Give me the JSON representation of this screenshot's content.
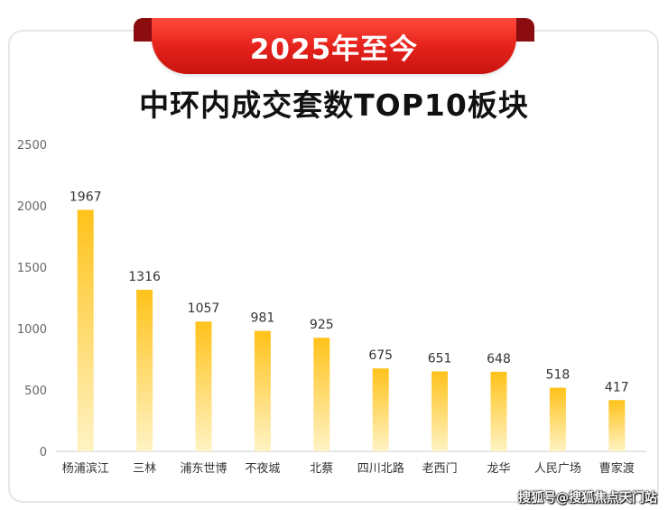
{
  "header": {
    "ribbon_title": "2025年至今",
    "main_title": "中环内成交套数TOP10板块"
  },
  "watermark": "搜狐号@搜狐焦点天门站",
  "colors": {
    "ribbon": "#e3201a",
    "bar_top": "#ffc21a",
    "bar_bottom": "#fff3c4"
  },
  "chart_data": {
    "type": "bar",
    "categories": [
      "杨浦滨江",
      "三林",
      "浦东世博",
      "不夜城",
      "北蔡",
      "四川北路",
      "老西门",
      "龙华",
      "人民广场",
      "曹家渡"
    ],
    "values": [
      1967,
      1316,
      1057,
      981,
      925,
      675,
      651,
      648,
      518,
      417
    ],
    "yticks": [
      0,
      500,
      1000,
      1500,
      2000,
      2500
    ],
    "ylim": [
      0,
      2500
    ],
    "grid": false,
    "legend": "none"
  }
}
